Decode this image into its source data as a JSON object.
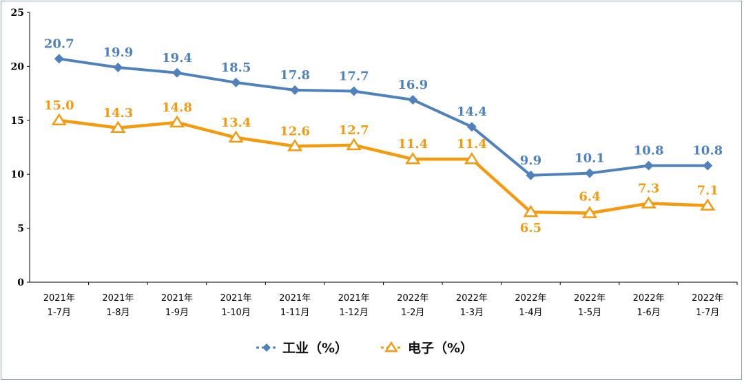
{
  "chart_data": {
    "type": "line",
    "categories": [
      [
        "2021年",
        "1-7月"
      ],
      [
        "2021年",
        "1-8月"
      ],
      [
        "2021年",
        "1-9月"
      ],
      [
        "2021年",
        "1-10月"
      ],
      [
        "2021年",
        "1-11月"
      ],
      [
        "2021年",
        "1-12月"
      ],
      [
        "2022年",
        "1-2月"
      ],
      [
        "2022年",
        "1-3月"
      ],
      [
        "2022年",
        "1-4月"
      ],
      [
        "2022年",
        "1-5月"
      ],
      [
        "2022年",
        "1-6月"
      ],
      [
        "2022年",
        "1-7月"
      ]
    ],
    "series": [
      {
        "name": "工业（%）",
        "color": "#4f81bd",
        "marker": "diamond",
        "values": [
          20.7,
          19.9,
          19.4,
          18.5,
          17.8,
          17.7,
          16.9,
          14.4,
          9.9,
          10.1,
          10.8,
          10.8
        ],
        "labels": [
          "20.7",
          "19.9",
          "19.4",
          "18.5",
          "17.8",
          "17.7",
          "16.9",
          "14.4",
          "9.9",
          "10.1",
          "10.8",
          "10.8"
        ]
      },
      {
        "name": "电子（%）",
        "color": "#f59a0d",
        "marker": "triangle-open",
        "values": [
          15.0,
          14.3,
          14.8,
          13.4,
          12.6,
          12.7,
          11.4,
          11.4,
          6.5,
          6.4,
          7.3,
          7.1
        ],
        "labels": [
          "15.0",
          "14.3",
          "14.8",
          "13.4",
          "12.6",
          "12.7",
          "11.4",
          "11.4",
          "6.5",
          "6.4",
          "7.3",
          "7.1"
        ]
      }
    ],
    "ylim": [
      0,
      25
    ],
    "yticks": [
      "0",
      "5",
      "10",
      "15",
      "20",
      "25"
    ],
    "title": "",
    "xlabel": "",
    "ylabel": "",
    "grid": false,
    "legend": "bottom-center"
  }
}
